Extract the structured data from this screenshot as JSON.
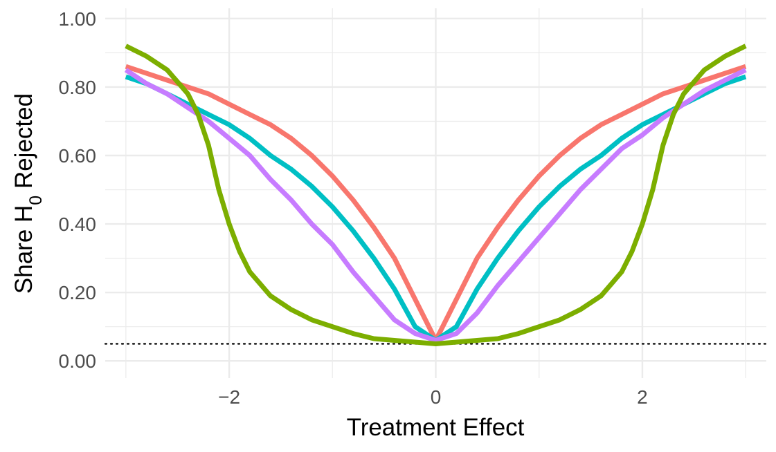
{
  "chart_data": {
    "type": "line",
    "xlabel": "Treatment Effect",
    "ylabel": {
      "prefix": "Share ",
      "symbol": "H",
      "subscript": "0",
      "suffix": " Rejected"
    },
    "xlim": [
      -3.2,
      3.2
    ],
    "ylim": [
      -0.05,
      1.03
    ],
    "x_ticks": [
      {
        "value": -2,
        "label": "−2"
      },
      {
        "value": 0,
        "label": "0"
      },
      {
        "value": 2,
        "label": "2"
      }
    ],
    "y_ticks": [
      {
        "value": 0.0,
        "label": "0.00"
      },
      {
        "value": 0.2,
        "label": "0.20"
      },
      {
        "value": 0.4,
        "label": "0.40"
      },
      {
        "value": 0.6,
        "label": "0.60"
      },
      {
        "value": 0.8,
        "label": "0.80"
      },
      {
        "value": 1.0,
        "label": "1.00"
      }
    ],
    "minor_x": [
      -3,
      -1,
      1,
      3
    ],
    "minor_y": [
      0.1,
      0.3,
      0.5,
      0.7,
      0.9
    ],
    "grid": true,
    "legend": "none",
    "reference_line": {
      "y": 0.05,
      "style": "dotted",
      "color": "#000000"
    },
    "series": [
      {
        "color": "#F8766D",
        "x": [
          -3.0,
          -2.8,
          -2.6,
          -2.4,
          -2.2,
          -2.0,
          -1.8,
          -1.6,
          -1.4,
          -1.2,
          -1.0,
          -0.8,
          -0.6,
          -0.4,
          -0.2,
          0.0,
          0.2,
          0.4,
          0.6,
          0.8,
          1.0,
          1.2,
          1.4,
          1.6,
          1.8,
          2.0,
          2.2,
          2.4,
          2.6,
          2.8,
          3.0
        ],
        "y": [
          0.86,
          0.84,
          0.82,
          0.8,
          0.78,
          0.75,
          0.72,
          0.69,
          0.65,
          0.6,
          0.54,
          0.47,
          0.39,
          0.3,
          0.18,
          0.06,
          0.18,
          0.3,
          0.39,
          0.47,
          0.54,
          0.6,
          0.65,
          0.69,
          0.72,
          0.75,
          0.78,
          0.8,
          0.82,
          0.84,
          0.86
        ]
      },
      {
        "color": "#00BFC4",
        "x": [
          -3.0,
          -2.8,
          -2.6,
          -2.4,
          -2.2,
          -2.0,
          -1.8,
          -1.6,
          -1.4,
          -1.2,
          -1.0,
          -0.8,
          -0.6,
          -0.4,
          -0.2,
          0.0,
          0.2,
          0.4,
          0.6,
          0.8,
          1.0,
          1.2,
          1.4,
          1.6,
          1.8,
          2.0,
          2.2,
          2.4,
          2.6,
          2.8,
          3.0
        ],
        "y": [
          0.83,
          0.81,
          0.78,
          0.75,
          0.72,
          0.69,
          0.65,
          0.6,
          0.56,
          0.51,
          0.45,
          0.38,
          0.3,
          0.21,
          0.1,
          0.06,
          0.1,
          0.21,
          0.3,
          0.38,
          0.45,
          0.51,
          0.56,
          0.6,
          0.65,
          0.69,
          0.72,
          0.75,
          0.78,
          0.81,
          0.83
        ]
      },
      {
        "color": "#C77CFF",
        "x": [
          -3.0,
          -2.8,
          -2.6,
          -2.4,
          -2.2,
          -2.0,
          -1.8,
          -1.6,
          -1.4,
          -1.2,
          -1.0,
          -0.8,
          -0.6,
          -0.4,
          -0.2,
          0.0,
          0.2,
          0.4,
          0.6,
          0.8,
          1.0,
          1.2,
          1.4,
          1.6,
          1.8,
          2.0,
          2.2,
          2.4,
          2.6,
          2.8,
          3.0
        ],
        "y": [
          0.85,
          0.81,
          0.78,
          0.74,
          0.7,
          0.65,
          0.6,
          0.53,
          0.47,
          0.4,
          0.34,
          0.26,
          0.19,
          0.12,
          0.08,
          0.06,
          0.08,
          0.14,
          0.22,
          0.29,
          0.36,
          0.43,
          0.5,
          0.56,
          0.62,
          0.66,
          0.71,
          0.75,
          0.79,
          0.82,
          0.85
        ]
      },
      {
        "color": "#7CAE00",
        "x": [
          -3.0,
          -2.8,
          -2.6,
          -2.4,
          -2.3,
          -2.2,
          -2.1,
          -2.0,
          -1.9,
          -1.8,
          -1.6,
          -1.4,
          -1.2,
          -1.0,
          -0.8,
          -0.6,
          -0.4,
          -0.2,
          0.0,
          0.2,
          0.4,
          0.6,
          0.8,
          1.0,
          1.2,
          1.4,
          1.6,
          1.8,
          1.9,
          2.0,
          2.1,
          2.2,
          2.3,
          2.4,
          2.6,
          2.8,
          3.0
        ],
        "y": [
          0.92,
          0.89,
          0.85,
          0.78,
          0.72,
          0.63,
          0.5,
          0.4,
          0.32,
          0.26,
          0.19,
          0.15,
          0.12,
          0.1,
          0.08,
          0.065,
          0.06,
          0.055,
          0.05,
          0.055,
          0.06,
          0.065,
          0.08,
          0.1,
          0.12,
          0.15,
          0.19,
          0.26,
          0.32,
          0.4,
          0.5,
          0.63,
          0.72,
          0.78,
          0.85,
          0.89,
          0.92
        ]
      }
    ]
  }
}
